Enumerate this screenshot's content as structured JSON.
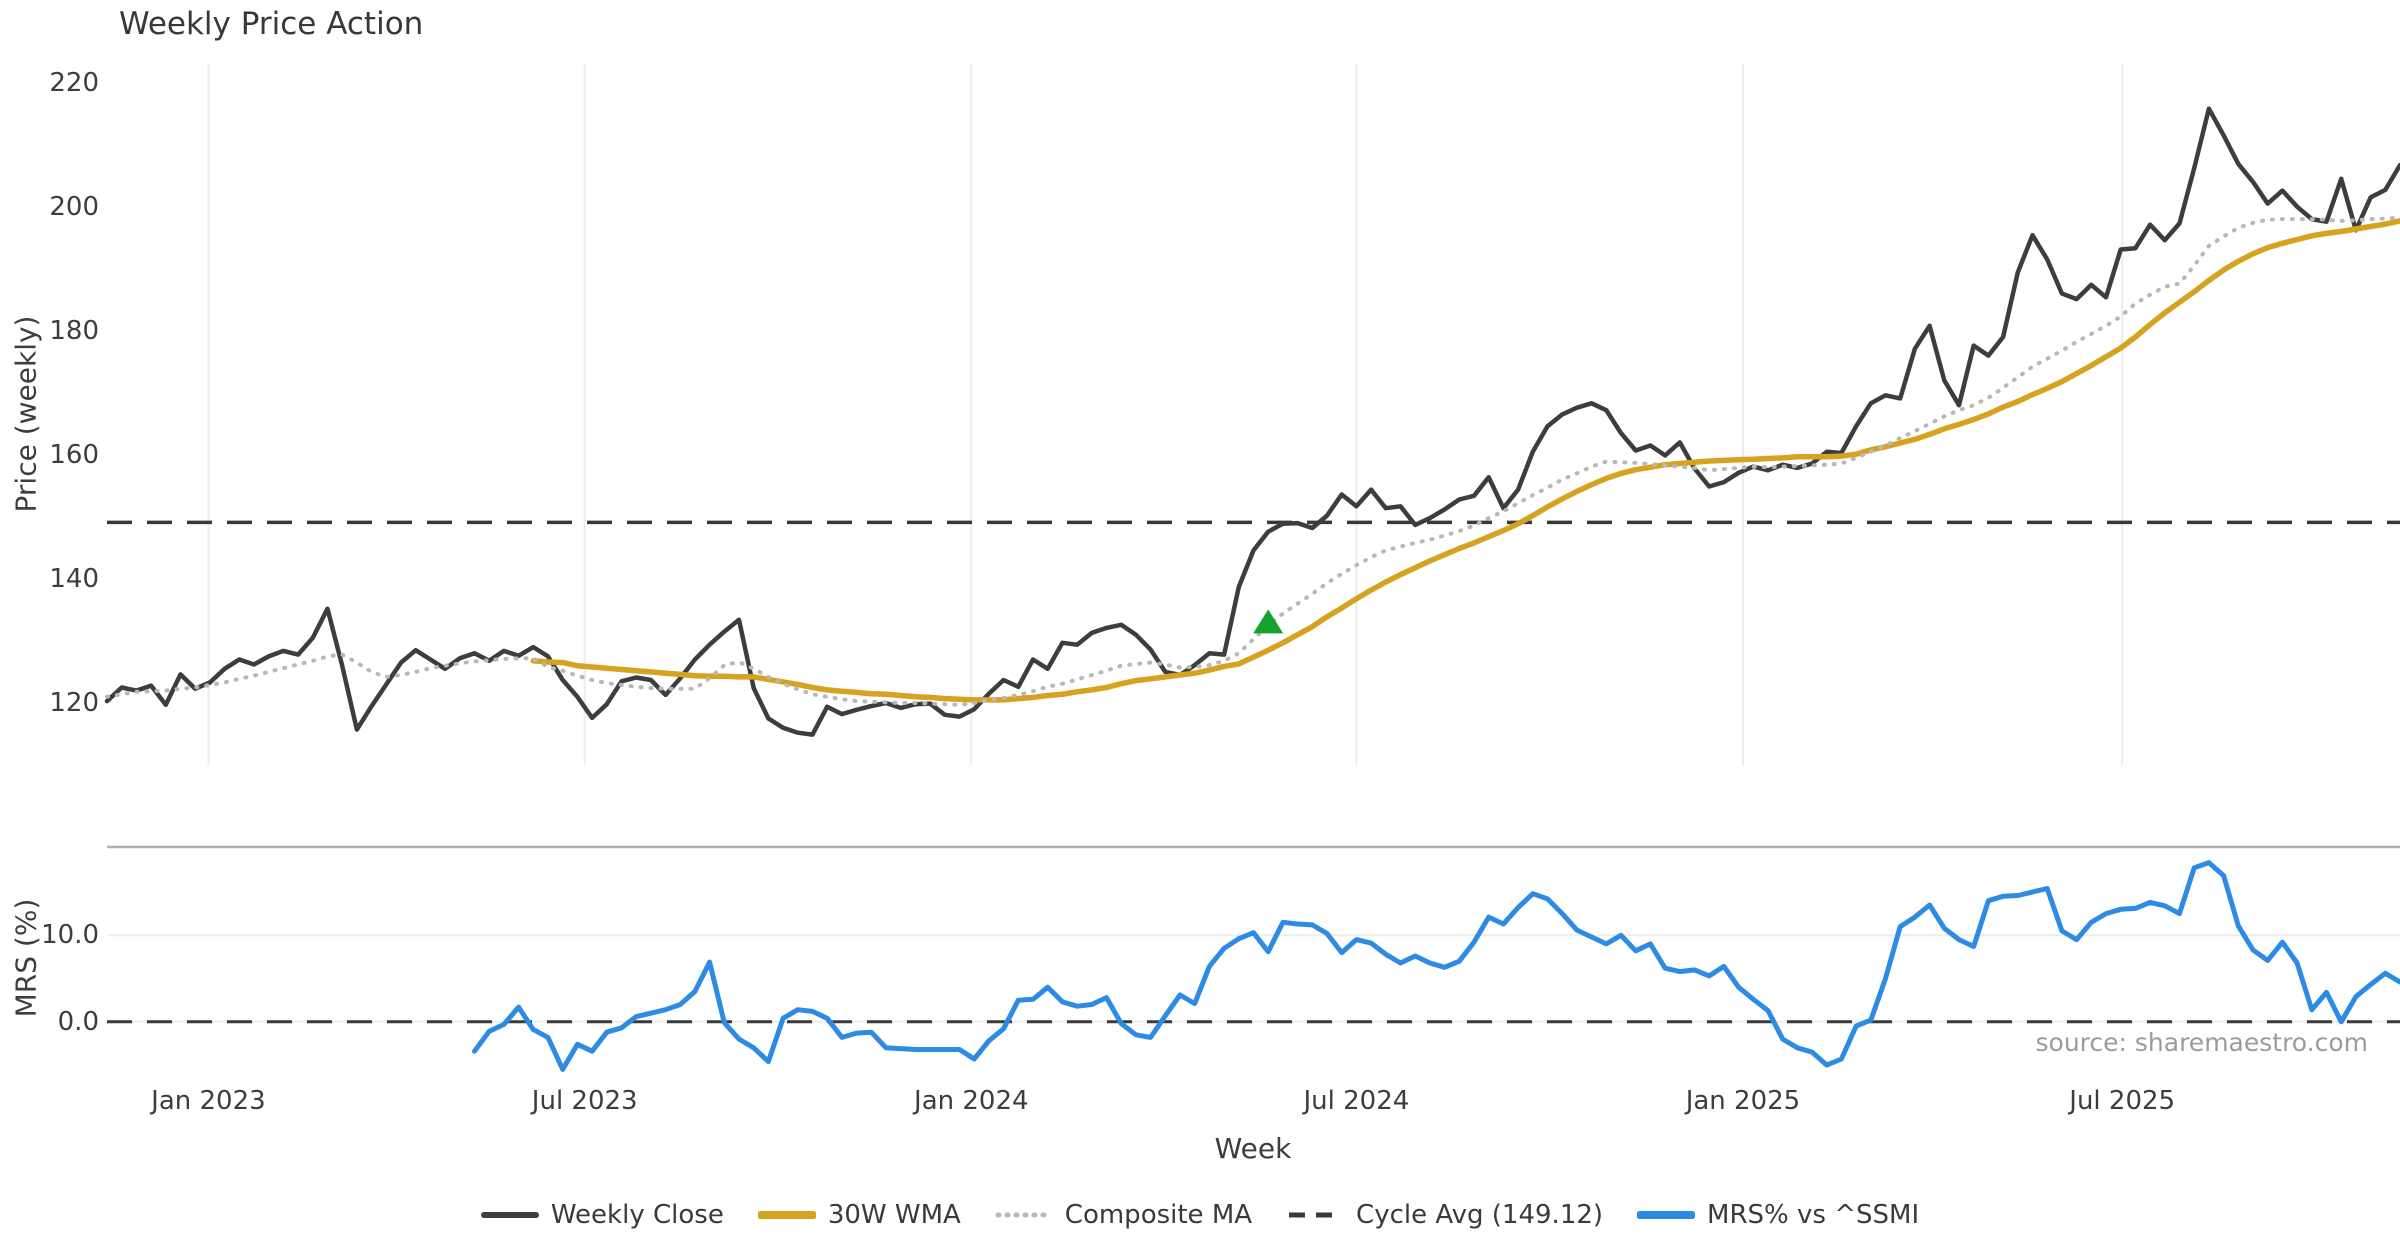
{
  "title": "Weekly Price Action",
  "source_note": "source: sharemaestro.com",
  "xlabel": "Week",
  "colors": {
    "weekly_close": "#3d3d3d",
    "wma_30w": "#d6a320",
    "composite_ma": "#b8b8b8",
    "cycle_avg": "#3a3a3a",
    "mrs": "#2e8be4",
    "signal_green": "#16a32c",
    "grid": "#ececec",
    "grid_soft": "#ededed",
    "spine": "#b0b0b0",
    "text": "#3d3d3d",
    "muted_text": "#9b9b9b"
  },
  "xticks": [
    {
      "week": 6.9,
      "label": "Jan 2023"
    },
    {
      "week": 32.5,
      "label": "Jul 2023"
    },
    {
      "week": 58.8,
      "label": "Jan 2024"
    },
    {
      "week": 85.0,
      "label": "Jul 2024"
    },
    {
      "week": 111.3,
      "label": "Jan 2025"
    },
    {
      "week": 137.1,
      "label": "Jul 2025"
    }
  ],
  "legend": [
    {
      "label": "Weekly Close",
      "swatch": "solid",
      "color_key": "weekly_close"
    },
    {
      "label": "30W WMA",
      "swatch": "solid",
      "color_key": "wma_30w"
    },
    {
      "label": "Composite MA",
      "swatch": "dotted",
      "color_key": "composite_ma"
    },
    {
      "label": "Cycle Avg (149.12)",
      "swatch": "dashed",
      "color_key": "cycle_avg"
    },
    {
      "label": "MRS% vs ^SSMI",
      "swatch": "solid",
      "color_key": "mrs"
    }
  ],
  "chart_data": [
    {
      "type": "line",
      "title": "Weekly Price Action",
      "ylabel": "Price (weekly)",
      "ylim": [
        110,
        223
      ],
      "yticks": [
        {
          "value": 120,
          "label": "120"
        },
        {
          "value": 140,
          "label": "140"
        },
        {
          "value": 160,
          "label": "160"
        },
        {
          "value": 180,
          "label": "180"
        },
        {
          "value": 200,
          "label": "200"
        },
        {
          "value": 220,
          "label": "220"
        }
      ],
      "x_domain": [
        0,
        156
      ],
      "x_unit": "weeks (weekly points, ~Nov 2022 to ~Nov 2025)",
      "grid": "vertical",
      "legend_position": "bottom-center",
      "series": [
        {
          "name": "Weekly Close",
          "style": "solid",
          "color_key": "weekly_close",
          "width": 4.5,
          "start_week": 0,
          "values": [
            120.3,
            122.5,
            122.0,
            122.8,
            119.7,
            124.6,
            122.3,
            123.3,
            125.5,
            127.0,
            126.2,
            127.5,
            128.4,
            127.8,
            130.5,
            135.2,
            126.0,
            115.7,
            119.5,
            123.0,
            126.5,
            128.5,
            127.0,
            125.5,
            127.2,
            128.0,
            126.8,
            128.4,
            127.6,
            129.0,
            127.5,
            123.7,
            121.0,
            117.6,
            119.8,
            123.5,
            124.1,
            123.7,
            121.3,
            124.0,
            127.0,
            129.4,
            131.5,
            133.4,
            122.4,
            117.5,
            116.0,
            115.2,
            114.9,
            119.4,
            118.2,
            118.9,
            119.5,
            120.0,
            119.2,
            119.8,
            119.9,
            118.1,
            117.8,
            119.0,
            121.5,
            123.7,
            122.6,
            127.0,
            125.5,
            129.7,
            129.4,
            131.3,
            132.1,
            132.6,
            131.0,
            128.6,
            125.0,
            124.5,
            126.1,
            128.0,
            127.8,
            138.7,
            144.6,
            147.6,
            148.9,
            149.0,
            148.2,
            150.2,
            153.6,
            151.7,
            154.4,
            151.4,
            151.7,
            148.7,
            149.8,
            151.2,
            152.8,
            153.4,
            156.4,
            151.4,
            154.4,
            160.5,
            164.6,
            166.5,
            167.6,
            168.3,
            167.2,
            163.5,
            160.7,
            161.5,
            159.9,
            162.0,
            157.8,
            154.9,
            155.6,
            157.1,
            158.1,
            157.5,
            158.4,
            157.9,
            158.6,
            160.5,
            160.3,
            164.6,
            168.3,
            169.6,
            169.1,
            177.1,
            180.8,
            172.0,
            168.0,
            177.6,
            176.0,
            179.0,
            189.4,
            195.4,
            191.5,
            186.0,
            185.1,
            187.4,
            185.4,
            193.1,
            193.3,
            197.1,
            194.6,
            197.3,
            206.2,
            215.8,
            211.5,
            206.9,
            204.0,
            200.5,
            202.6,
            200.0,
            198.0,
            197.6,
            204.5,
            196.2,
            201.5,
            202.7,
            206.7
          ]
        },
        {
          "name": "30W WMA",
          "style": "solid",
          "color_key": "wma_30w",
          "width": 5.5,
          "start_week": 29,
          "values": [
            126.8,
            126.6,
            126.5,
            126.0,
            125.8,
            125.6,
            125.4,
            125.2,
            125.0,
            124.8,
            124.6,
            124.4,
            124.3,
            124.3,
            124.2,
            124.2,
            123.8,
            123.4,
            123.0,
            122.5,
            122.1,
            121.9,
            121.7,
            121.5,
            121.4,
            121.2,
            121.0,
            120.9,
            120.7,
            120.6,
            120.5,
            120.5,
            120.5,
            120.7,
            120.9,
            121.2,
            121.4,
            121.8,
            122.1,
            122.5,
            123.1,
            123.6,
            123.9,
            124.2,
            124.5,
            124.8,
            125.3,
            125.9,
            126.3,
            127.4,
            128.5,
            129.7,
            131.0,
            132.3,
            133.9,
            135.3,
            136.8,
            138.2,
            139.5,
            140.7,
            141.8,
            142.9,
            143.9,
            144.9,
            145.8,
            146.8,
            147.8,
            148.9,
            150.2,
            151.6,
            152.9,
            154.1,
            155.2,
            156.2,
            157.0,
            157.6,
            158.0,
            158.4,
            158.6,
            158.8,
            159.0,
            159.1,
            159.2,
            159.3,
            159.4,
            159.5,
            159.7,
            159.7,
            159.7,
            159.8,
            160.1,
            160.8,
            161.3,
            161.9,
            162.5,
            163.3,
            164.2,
            164.9,
            165.7,
            166.6,
            167.7,
            168.6,
            169.7,
            170.7,
            171.8,
            173.1,
            174.4,
            175.8,
            177.2,
            179.0,
            181.0,
            182.9,
            184.6,
            186.3,
            188.1,
            189.8,
            191.2,
            192.4,
            193.4,
            194.1,
            194.7,
            195.3,
            195.7,
            196.0,
            196.4,
            196.8,
            197.2,
            197.7
          ]
        },
        {
          "name": "Composite MA",
          "style": "dotted",
          "color_key": "composite_ma",
          "width": 4,
          "start_week": 0,
          "values": [
            121.0,
            121.4,
            121.8,
            121.9,
            122.0,
            122.3,
            122.5,
            122.9,
            123.3,
            123.9,
            124.4,
            125.0,
            125.6,
            126.2,
            126.8,
            127.5,
            127.8,
            126.5,
            125.0,
            124.2,
            124.5,
            125.0,
            125.6,
            126.0,
            126.4,
            126.7,
            126.9,
            127.1,
            127.2,
            127.2,
            125.8,
            125.2,
            124.4,
            123.7,
            123.2,
            122.9,
            122.6,
            122.4,
            122.3,
            122.3,
            122.3,
            124.0,
            126.1,
            126.6,
            125.5,
            124.2,
            123.1,
            122.2,
            121.4,
            121.0,
            120.6,
            120.3,
            120.2,
            120.1,
            120.0,
            120.0,
            119.9,
            119.8,
            119.7,
            120.0,
            120.5,
            120.8,
            121.3,
            121.9,
            122.6,
            123.1,
            123.8,
            124.5,
            125.2,
            126.0,
            126.3,
            126.5,
            126.2,
            125.7,
            125.8,
            126.1,
            126.8,
            128.0,
            130.3,
            132.5,
            134.4,
            136.0,
            137.6,
            139.3,
            140.8,
            142.2,
            143.5,
            144.6,
            145.2,
            145.8,
            146.3,
            147.0,
            147.7,
            148.6,
            149.8,
            150.9,
            152.2,
            153.5,
            154.7,
            156.0,
            157.0,
            158.1,
            158.9,
            158.8,
            158.7,
            158.5,
            158.3,
            158.1,
            157.9,
            157.5,
            157.7,
            157.9,
            158.1,
            158.0,
            158.1,
            158.2,
            158.3,
            158.4,
            158.6,
            159.5,
            160.5,
            161.5,
            162.7,
            163.8,
            165.0,
            166.2,
            167.2,
            168.0,
            169.2,
            170.8,
            172.5,
            174.2,
            175.5,
            176.8,
            178.2,
            179.5,
            180.8,
            182.3,
            184.4,
            185.8,
            187.1,
            187.6,
            190.5,
            193.7,
            195.2,
            196.6,
            197.4,
            197.9,
            198.0,
            198.0,
            198.0,
            197.9,
            197.7,
            197.8,
            198.0,
            198.1,
            198.2
          ]
        }
      ],
      "hlines": [
        {
          "name": "Cycle Avg (149.12)",
          "value": 149.12,
          "style": "dashed",
          "color_key": "cycle_avg",
          "width": 3.5
        }
      ],
      "markers": [
        {
          "type": "triangle-up",
          "week": 79,
          "value": 133,
          "color_key": "signal_green",
          "meaning": "buy signal"
        }
      ]
    },
    {
      "type": "line",
      "ylabel": "MRS (%)",
      "xlabel": "Week",
      "ylim": [
        -5.8,
        20.2
      ],
      "yticks": [
        {
          "value": 0,
          "label": "0.0"
        },
        {
          "value": 10,
          "label": "10.0"
        }
      ],
      "x_domain": [
        0,
        156
      ],
      "grid": "horizontal",
      "series": [
        {
          "name": "MRS% vs ^SSMI",
          "style": "solid",
          "color_key": "mrs",
          "width": 5,
          "start_week": 25,
          "values": [
            -3.4,
            -1.1,
            -0.3,
            1.7,
            -0.9,
            -1.8,
            -5.5,
            -2.6,
            -3.4,
            -1.2,
            -0.7,
            0.6,
            1.0,
            1.4,
            2.0,
            3.5,
            6.9,
            -0.1,
            -2.0,
            -3.0,
            -4.6,
            0.4,
            1.4,
            1.2,
            0.4,
            -1.8,
            -1.3,
            -1.2,
            -3.0,
            -3.1,
            -3.2,
            -3.2,
            -3.2,
            -3.2,
            -4.3,
            -2.2,
            -0.8,
            2.5,
            2.6,
            4.0,
            2.3,
            1.8,
            2.0,
            2.8,
            -0.2,
            -1.5,
            -1.8,
            0.7,
            3.1,
            2.1,
            6.4,
            8.5,
            9.6,
            10.3,
            8.1,
            11.5,
            11.3,
            11.2,
            10.2,
            8.0,
            9.5,
            9.1,
            7.8,
            6.8,
            7.6,
            6.8,
            6.3,
            7.0,
            9.2,
            12.1,
            11.3,
            13.2,
            14.8,
            14.2,
            12.5,
            10.6,
            9.8,
            9.0,
            10.0,
            8.2,
            9.0,
            6.2,
            5.8,
            6.0,
            5.3,
            6.4,
            4.0,
            2.6,
            1.3,
            -2.0,
            -3.0,
            -3.5,
            -5.0,
            -4.3,
            -0.5,
            0.2,
            5.0,
            11.0,
            12.1,
            13.5,
            10.8,
            9.5,
            8.7,
            14.0,
            14.5,
            14.6,
            15.0,
            15.4,
            10.5,
            9.5,
            11.5,
            12.5,
            13.0,
            13.1,
            13.8,
            13.4,
            12.5,
            17.8,
            18.4,
            16.9,
            11.1,
            8.3,
            7.1,
            9.2,
            6.8,
            1.4,
            3.4,
            0.0,
            2.9,
            4.3,
            5.6,
            4.6
          ]
        }
      ],
      "hlines": [
        {
          "name": "zero line",
          "value": 0,
          "style": "dashed",
          "color_key": "cycle_avg",
          "width": 3
        }
      ]
    }
  ]
}
